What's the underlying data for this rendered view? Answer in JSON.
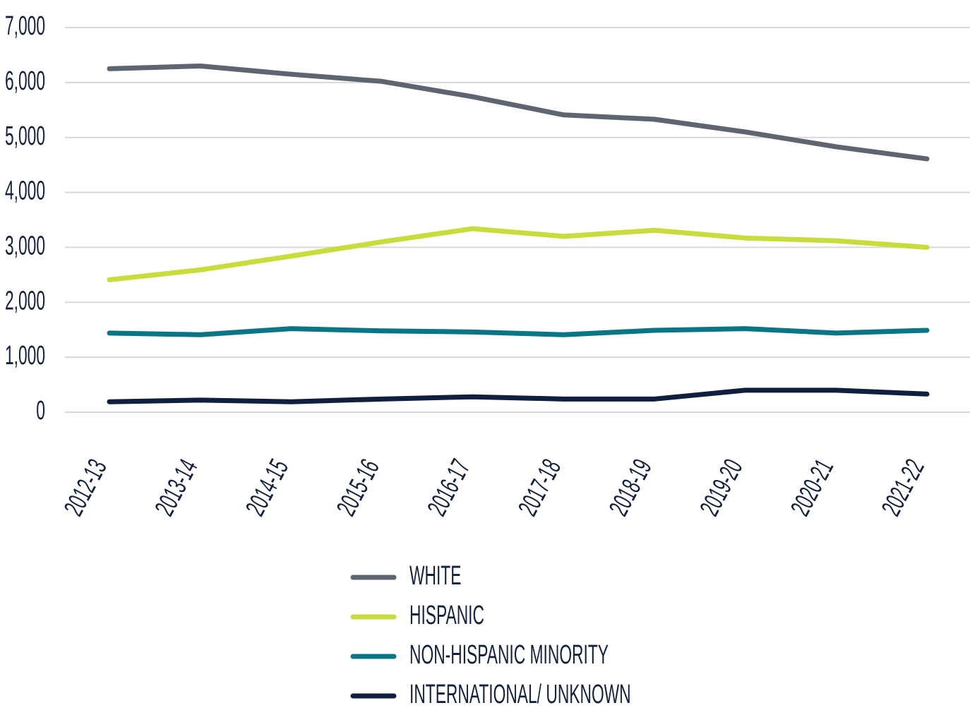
{
  "chart_data": {
    "type": "line",
    "categories": [
      "2012-13",
      "2013-14",
      "2014-15",
      "2015-16",
      "2016-17",
      "2017-18",
      "2018-19",
      "2019-20",
      "2020-21",
      "2021-22"
    ],
    "series": [
      {
        "name": "WHITE",
        "color": "#5d6670",
        "values": [
          6250,
          6300,
          6150,
          6020,
          5740,
          5410,
          5330,
          5100,
          4830,
          4610
        ]
      },
      {
        "name": "HISPANIC",
        "color": "#c8dc3c",
        "values": [
          2410,
          2590,
          2840,
          3100,
          3340,
          3200,
          3310,
          3170,
          3120,
          3000
        ]
      },
      {
        "name": "NON-HISPANIC MINORITY",
        "color": "#0a7585",
        "values": [
          1440,
          1410,
          1520,
          1480,
          1460,
          1410,
          1490,
          1520,
          1440,
          1490
        ]
      },
      {
        "name": "INTERNATIONAL/ UNKNOWN",
        "color": "#0f1f3d",
        "values": [
          190,
          220,
          190,
          240,
          280,
          240,
          240,
          400,
          400,
          330
        ]
      }
    ],
    "ylim": [
      0,
      7000
    ],
    "yticks": [
      0,
      {
        "value": 1000,
        "label": "1,000"
      },
      {
        "value": 2000,
        "label": "2,000"
      },
      {
        "value": 3000,
        "label": "3,000"
      },
      {
        "value": 4000,
        "label": "4,000"
      },
      {
        "value": 5000,
        "label": "5,000"
      },
      {
        "value": 6000,
        "label": "6,000"
      },
      {
        "value": 7000,
        "label": "7,000"
      }
    ],
    "grid": true,
    "legend": "bottom"
  }
}
